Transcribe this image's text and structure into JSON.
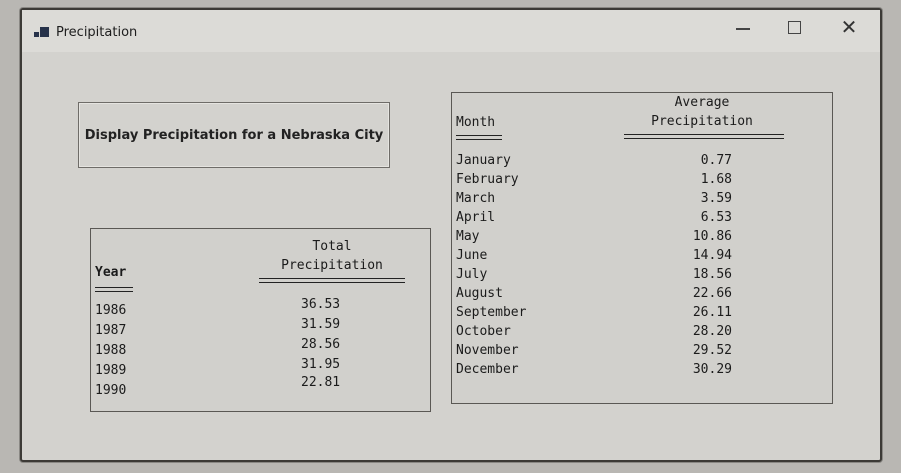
{
  "window": {
    "title": "Precipitation",
    "controls": {
      "minimize": "–",
      "maximize": "□",
      "close": "✕"
    }
  },
  "button": {
    "label": "Display Precipitation for a Nebraska City"
  },
  "annual": {
    "headers": {
      "year": "Year",
      "total_1": "Total",
      "total_2": "Precipitation"
    },
    "years": [
      "1986",
      "1987",
      "1988",
      "1989",
      "1990"
    ],
    "totals": [
      "36.53",
      "31.59",
      "28.56",
      "31.95",
      "22.81"
    ]
  },
  "monthly": {
    "headers": {
      "month": "Month",
      "avg_1": "Average",
      "avg_2": "Precipitation"
    },
    "months": [
      "January",
      "February",
      "March",
      "April",
      "May",
      "June",
      "July",
      "August",
      "September",
      "October",
      "November",
      "December"
    ],
    "averages": [
      "0.77",
      "1.68",
      "3.59",
      "6.53",
      "10.86",
      "14.94",
      "18.56",
      "22.66",
      "26.11",
      "28.20",
      "29.52",
      "30.29"
    ]
  },
  "colors": {
    "app_icon": "#27324a",
    "border": "#3c3a36"
  },
  "icons": {
    "app": "app-icon",
    "minimize": "minimize-icon",
    "maximize": "maximize-icon",
    "close": "close-icon"
  }
}
